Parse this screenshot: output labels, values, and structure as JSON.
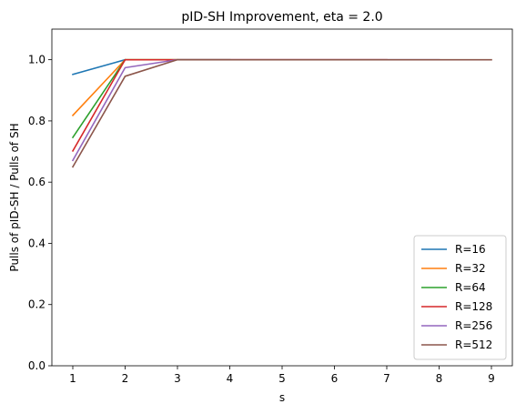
{
  "chart_data": {
    "type": "line",
    "title": "pID-SH Improvement, eta = 2.0",
    "xlabel": "s",
    "ylabel": "Pulls of pID-SH / Pulls of SH",
    "xlim": [
      0.6,
      9.4
    ],
    "ylim": [
      0.0,
      1.1
    ],
    "xticks": [
      1,
      2,
      3,
      4,
      5,
      6,
      7,
      8,
      9
    ],
    "xtick_labels": [
      "1",
      "2",
      "3",
      "4",
      "5",
      "6",
      "7",
      "8",
      "9"
    ],
    "yticks": [
      0.0,
      0.2,
      0.4,
      0.6,
      0.8,
      1.0
    ],
    "ytick_labels": [
      "0.0",
      "0.2",
      "0.4",
      "0.6",
      "0.8",
      "1.0"
    ],
    "grid": false,
    "legend_position": "lower-right",
    "series": [
      {
        "name": "R=16",
        "color": "#1f77b4",
        "x": [
          1,
          2
        ],
        "y": [
          0.952,
          1.0
        ]
      },
      {
        "name": "R=32",
        "color": "#ff7f0e",
        "x": [
          1,
          2,
          3
        ],
        "y": [
          0.818,
          1.0,
          1.0
        ]
      },
      {
        "name": "R=64",
        "color": "#2ca02c",
        "x": [
          1,
          2,
          3,
          4
        ],
        "y": [
          0.746,
          1.0,
          1.0,
          1.0
        ]
      },
      {
        "name": "R=128",
        "color": "#d62728",
        "x": [
          1,
          2,
          3,
          4,
          5,
          6,
          7
        ],
        "y": [
          0.702,
          1.0,
          1.0,
          1.0,
          1.0,
          1.0,
          1.0
        ]
      },
      {
        "name": "R=256",
        "color": "#9467bd",
        "x": [
          1,
          2,
          3,
          4,
          5,
          6,
          7,
          8
        ],
        "y": [
          0.671,
          0.974,
          1.0,
          1.0,
          1.0,
          1.0,
          1.0,
          1.0
        ]
      },
      {
        "name": "R=512",
        "color": "#8c564b",
        "x": [
          1,
          2,
          3,
          4,
          5,
          6,
          7,
          8,
          9
        ],
        "y": [
          0.65,
          0.946,
          1.0,
          1.0,
          1.0,
          1.0,
          1.0,
          1.0,
          1.0
        ]
      }
    ]
  }
}
